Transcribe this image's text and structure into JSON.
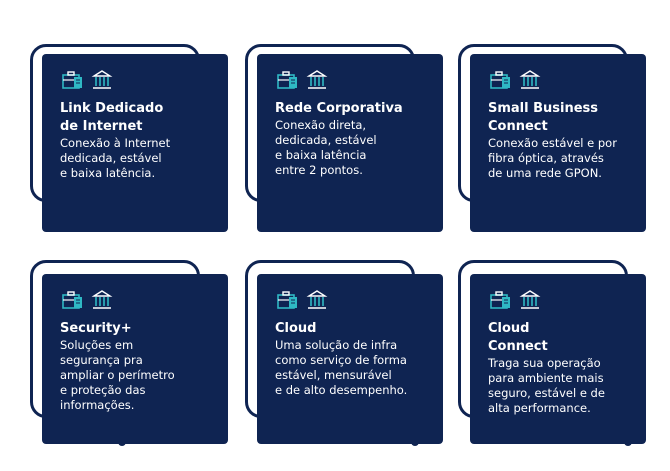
{
  "colors": {
    "navy": "#0f2452",
    "teal": "#2fb8c4",
    "white": "#ffffff"
  },
  "cards": [
    {
      "title": "Link Dedicado\nde Internet",
      "description": "Conexão à Internet\ndedicada, estável\ne baixa latência.",
      "icons": [
        "briefcase-document-icon",
        "bank-building-icon"
      ]
    },
    {
      "title": "Rede Corporativa",
      "description": "Conexão direta,\ndedicada, estável\ne baixa latência\nentre 2 pontos.",
      "icons": [
        "briefcase-document-icon",
        "bank-building-icon"
      ]
    },
    {
      "title": "Small Business\nConnect",
      "description": "Conexão estável e por\nfibra óptica, através\nde uma rede GPON.",
      "icons": [
        "briefcase-document-icon",
        "bank-building-icon"
      ]
    },
    {
      "title": "Security+",
      "description": "Soluções em\nsegurança pra\nampliar o perímetro\ne proteção das\ninformações.",
      "icons": [
        "briefcase-document-icon",
        "bank-building-icon"
      ]
    },
    {
      "title": "Cloud",
      "description": "Uma solução de infra\ncomo serviço de forma\nestável, mensurável\ne de alto desempenho.",
      "icons": [
        "briefcase-document-icon",
        "bank-building-icon"
      ]
    },
    {
      "title": " Cloud\nConnect",
      "description": "Traga sua operação\npara ambiente mais\nseguro, estável e de\nalta performance.",
      "icons": [
        "briefcase-document-icon",
        "bank-building-icon"
      ]
    }
  ]
}
